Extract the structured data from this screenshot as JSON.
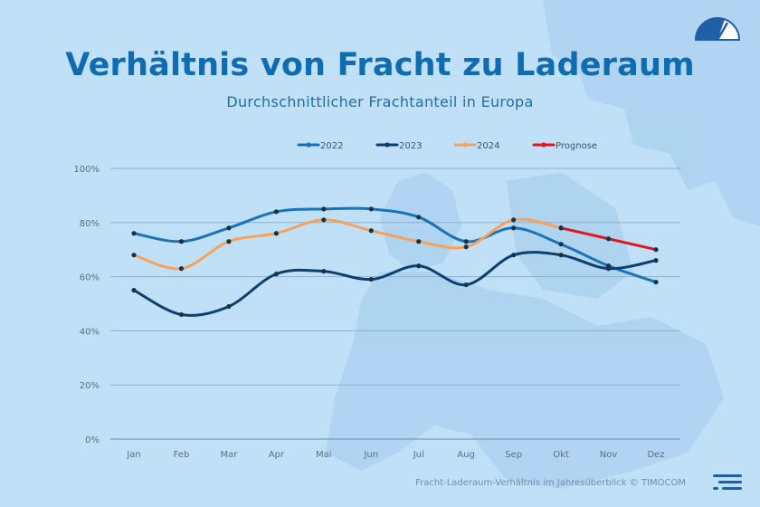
{
  "title": "Verhältnis von Fracht zu Laderaum",
  "subtitle": "Durchschnittlicher Frachtanteil in Europa",
  "caption": "Fracht-Laderaum-Verhältnis im Jahresüberblick © TIMOCOM",
  "logo_icon": "gauge-icon",
  "footer_logo_icon": "timocom-logo-icon",
  "colors": {
    "background": "#bfe0f7",
    "title": "#0f6cb0",
    "s2022": "#1a72b8",
    "s2023": "#0d3f6e",
    "s2024": "#f5a25d",
    "prognose": "#e0181b"
  },
  "chart_data": {
    "type": "line",
    "categories": [
      "Jan",
      "Feb",
      "Mar",
      "Apr",
      "Mai",
      "Jun",
      "Jul",
      "Aug",
      "Sep",
      "Okt",
      "Nov",
      "Dez"
    ],
    "ylim": [
      0,
      100
    ],
    "yticks": [
      "0%",
      "20%",
      "40%",
      "60%",
      "80%",
      "100%"
    ],
    "ytick_values": [
      0,
      20,
      40,
      60,
      80,
      100
    ],
    "grid": true,
    "legend_position": "top",
    "series": [
      {
        "name": "2022",
        "color": "#1a72b8",
        "values": [
          76,
          73,
          78,
          84,
          85,
          85,
          82,
          73,
          78,
          72,
          64,
          58
        ]
      },
      {
        "name": "2023",
        "color": "#0d3f6e",
        "values": [
          55,
          46,
          49,
          61,
          62,
          59,
          64,
          57,
          68,
          68,
          63,
          66
        ]
      },
      {
        "name": "2024",
        "color": "#f5a25d",
        "values": [
          68,
          63,
          73,
          76,
          81,
          77,
          73,
          71,
          81,
          78,
          null,
          null
        ]
      },
      {
        "name": "Prognose",
        "color": "#e0181b",
        "values": [
          null,
          null,
          null,
          null,
          null,
          null,
          null,
          null,
          null,
          78,
          74,
          70
        ]
      }
    ]
  }
}
